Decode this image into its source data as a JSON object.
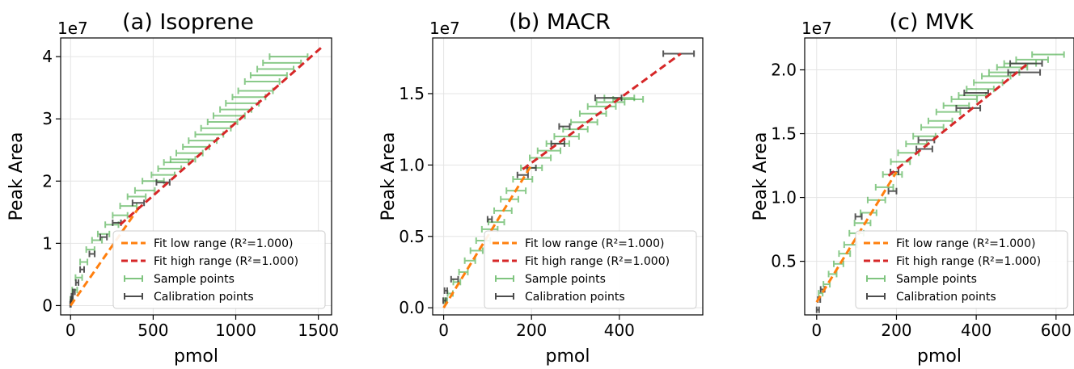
{
  "chart_data": [
    {
      "type": "scatter",
      "title": "(a) Isoprene",
      "xlabel": "pmol",
      "ylabel": "Peak Area",
      "offset_text": "1e7",
      "xlim": [
        -60,
        1580
      ],
      "ylim": [
        -0.15,
        4.3
      ],
      "xticks": [
        {
          "v": 0,
          "label": "0"
        },
        {
          "v": 500,
          "label": "500"
        },
        {
          "v": 1000,
          "label": "1000"
        },
        {
          "v": 1500,
          "label": "1500"
        }
      ],
      "yticks": [
        {
          "v": 0,
          "label": "0"
        },
        {
          "v": 1,
          "label": "1"
        },
        {
          "v": 2,
          "label": "2"
        },
        {
          "v": 3,
          "label": "3"
        },
        {
          "v": 4,
          "label": "4"
        }
      ],
      "grid": true,
      "legend_position": "lower-right",
      "fits": [
        {
          "name": "Fit low range (R²=1.000)",
          "color": "#ff7f0e",
          "x": [
            0,
            420
          ],
          "y": [
            0,
            1.6
          ]
        },
        {
          "name": "Fit high range (R²=1.000)",
          "color": "#d62728",
          "x": [
            300,
            1520
          ],
          "y": [
            1.3,
            4.15
          ]
        }
      ],
      "sample_points": {
        "name": "Sample points",
        "color": "#2ca02c",
        "x": [
          5,
          25,
          50,
          80,
          120,
          160,
          200,
          250,
          300,
          350,
          400,
          450,
          500,
          560,
          600,
          640,
          680,
          720,
          760,
          800,
          840,
          880,
          920,
          960,
          1000,
          1040,
          1080,
          1120,
          1160,
          1200,
          1240,
          1280,
          1320
        ],
        "y": [
          0.1,
          0.25,
          0.45,
          0.7,
          0.9,
          1.05,
          1.15,
          1.3,
          1.45,
          1.6,
          1.75,
          1.85,
          2.0,
          2.1,
          2.2,
          2.3,
          2.35,
          2.45,
          2.55,
          2.65,
          2.75,
          2.85,
          2.95,
          3.05,
          3.15,
          3.25,
          3.35,
          3.45,
          3.6,
          3.7,
          3.8,
          3.9,
          4.0
        ],
        "xerr": [
          6,
          15,
          20,
          22,
          25,
          30,
          35,
          40,
          45,
          50,
          55,
          60,
          65,
          70,
          70,
          75,
          75,
          80,
          80,
          85,
          85,
          90,
          90,
          95,
          95,
          100,
          100,
          105,
          105,
          110,
          110,
          115,
          115
        ]
      },
      "calibration_points": {
        "name": "Calibration points",
        "color": "#3a3a3a",
        "x": [
          0,
          2,
          5,
          10,
          20,
          40,
          70,
          130,
          200,
          280,
          410,
          560
        ],
        "y": [
          0.02,
          0.05,
          0.1,
          0.15,
          0.22,
          0.37,
          0.58,
          0.83,
          1.1,
          1.33,
          1.65,
          1.98
        ],
        "xerr": [
          2,
          2,
          3,
          4,
          6,
          8,
          12,
          16,
          20,
          25,
          35,
          40
        ]
      }
    },
    {
      "type": "scatter",
      "title": "(b) MACR",
      "xlabel": "pmol",
      "ylabel": "Peak Area",
      "offset_text": "1e7",
      "xlim": [
        -25,
        590
      ],
      "ylim": [
        -0.05,
        1.89
      ],
      "xticks": [
        {
          "v": 0,
          "label": "0"
        },
        {
          "v": 200,
          "label": "200"
        },
        {
          "v": 400,
          "label": "400"
        }
      ],
      "yticks": [
        {
          "v": 0,
          "label": "0.0"
        },
        {
          "v": 0.5,
          "label": "0.5"
        },
        {
          "v": 1.0,
          "label": "1.0"
        },
        {
          "v": 1.5,
          "label": "1.5"
        }
      ],
      "grid": true,
      "legend_position": "lower-right",
      "fits": [
        {
          "name": "Fit low range (R²=1.000)",
          "color": "#ff7f0e",
          "x": [
            0,
            200
          ],
          "y": [
            0,
            1.0
          ]
        },
        {
          "name": "Fit high range (R²=1.000)",
          "color": "#d62728",
          "x": [
            180,
            540
          ],
          "y": [
            0.97,
            1.78
          ]
        }
      ],
      "sample_points": {
        "name": "Sample points",
        "color": "#2ca02c",
        "x": [
          5,
          15,
          30,
          45,
          60,
          75,
          90,
          105,
          120,
          135,
          150,
          165,
          180,
          200,
          220,
          240,
          260,
          280,
          300,
          320,
          340,
          360,
          380,
          400,
          420
        ],
        "y": [
          0.05,
          0.1,
          0.18,
          0.25,
          0.33,
          0.4,
          0.47,
          0.55,
          0.6,
          0.68,
          0.76,
          0.82,
          0.9,
          0.98,
          1.05,
          1.1,
          1.15,
          1.2,
          1.25,
          1.3,
          1.36,
          1.41,
          1.44,
          1.47,
          1.46
        ],
        "xerr": [
          3,
          6,
          8,
          10,
          12,
          14,
          16,
          18,
          18,
          20,
          20,
          22,
          22,
          24,
          24,
          26,
          26,
          28,
          28,
          30,
          30,
          32,
          32,
          34,
          34
        ]
      },
      "calibration_points": {
        "name": "Calibration points",
        "color": "#3a3a3a",
        "x": [
          2,
          5,
          25,
          105,
          180,
          200,
          260,
          275,
          375,
          535
        ],
        "y": [
          0.05,
          0.12,
          0.2,
          0.62,
          0.93,
          0.98,
          1.15,
          1.27,
          1.47,
          1.78
        ],
        "xerr": [
          3,
          3,
          8,
          5,
          12,
          10,
          15,
          12,
          30,
          35
        ]
      }
    },
    {
      "type": "scatter",
      "title": "(c) MVK",
      "xlabel": "pmol",
      "ylabel": "Peak Area",
      "offset_text": "1e7",
      "xlim": [
        -30,
        645
      ],
      "ylim": [
        0.08,
        2.25
      ],
      "xticks": [
        {
          "v": 0,
          "label": "0"
        },
        {
          "v": 200,
          "label": "200"
        },
        {
          "v": 400,
          "label": "400"
        },
        {
          "v": 600,
          "label": "600"
        }
      ],
      "yticks": [
        {
          "v": 0.5,
          "label": "0.5"
        },
        {
          "v": 1.0,
          "label": "1.0"
        },
        {
          "v": 1.5,
          "label": "1.5"
        },
        {
          "v": 2.0,
          "label": "2.0"
        }
      ],
      "grid": true,
      "legend_position": "lower-right",
      "fits": [
        {
          "name": "Fit low range (R²=1.000)",
          "color": "#ff7f0e",
          "x": [
            0,
            200
          ],
          "y": [
            0.18,
            1.2
          ]
        },
        {
          "name": "Fit high range (R²=1.000)",
          "color": "#d62728",
          "x": [
            180,
            530
          ],
          "y": [
            1.17,
            2.05
          ]
        }
      ],
      "sample_points": {
        "name": "Sample points",
        "color": "#2ca02c",
        "x": [
          10,
          25,
          40,
          55,
          70,
          85,
          100,
          115,
          130,
          150,
          170,
          190,
          210,
          230,
          250,
          270,
          290,
          310,
          330,
          350,
          370,
          390,
          410,
          430,
          450,
          470,
          490,
          510,
          540,
          580
        ],
        "y": [
          0.25,
          0.32,
          0.4,
          0.48,
          0.56,
          0.63,
          0.72,
          0.8,
          0.88,
          0.98,
          1.08,
          1.18,
          1.28,
          1.35,
          1.42,
          1.48,
          1.55,
          1.6,
          1.67,
          1.72,
          1.77,
          1.8,
          1.85,
          1.9,
          1.95,
          1.98,
          2.02,
          2.05,
          2.08,
          2.12
        ],
        "xerr": [
          5,
          8,
          10,
          12,
          14,
          16,
          18,
          20,
          20,
          22,
          22,
          24,
          24,
          26,
          26,
          28,
          28,
          30,
          30,
          32,
          32,
          34,
          34,
          36,
          36,
          38,
          38,
          40,
          40,
          40
        ]
      },
      "calibration_points": {
        "name": "Calibration points",
        "color": "#3a3a3a",
        "x": [
          3,
          6,
          15,
          105,
          190,
          195,
          270,
          275,
          380,
          400,
          520,
          525
        ],
        "y": [
          0.12,
          0.2,
          0.28,
          0.85,
          1.05,
          1.2,
          1.38,
          1.45,
          1.7,
          1.82,
          1.98,
          2.05
        ],
        "xerr": [
          3,
          3,
          5,
          8,
          10,
          10,
          20,
          20,
          30,
          30,
          40,
          40
        ]
      }
    }
  ]
}
